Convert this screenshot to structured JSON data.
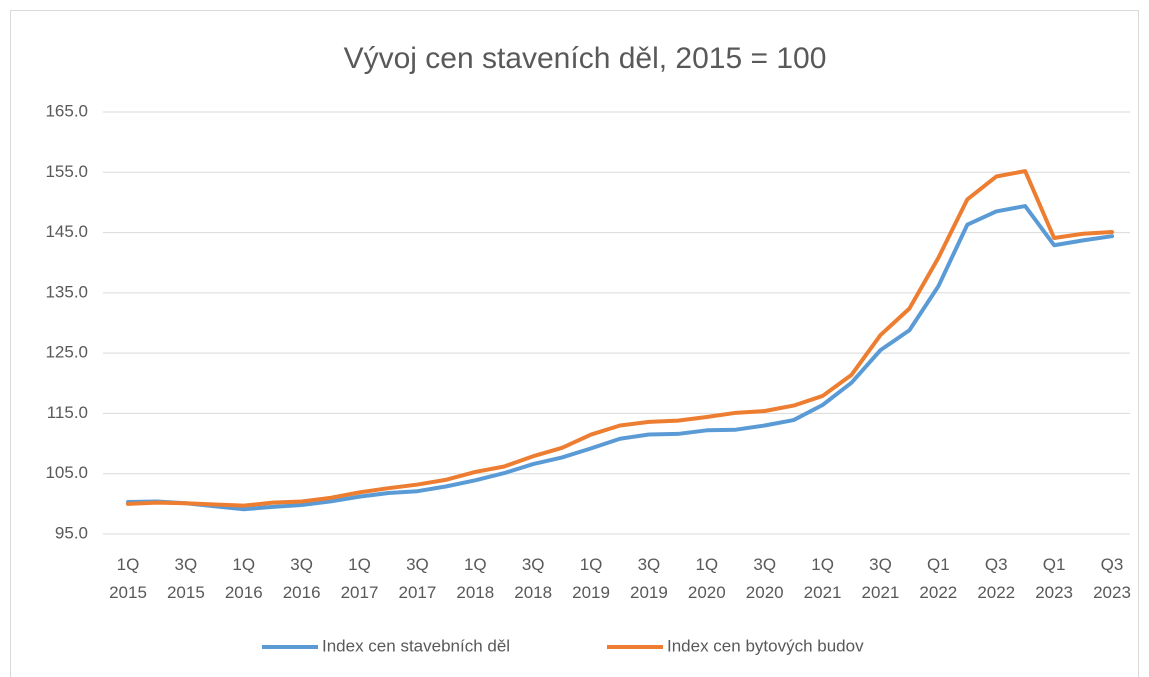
{
  "chart_data": {
    "type": "line",
    "title": "Vývoj cen staveních děl, 2015 = 100",
    "categories": [
      "1Q\n2015",
      null,
      "3Q\n2015",
      null,
      "1Q\n2016",
      null,
      "3Q\n2016",
      null,
      "1Q\n2017",
      null,
      "3Q\n2017",
      null,
      "1Q\n2018",
      null,
      "3Q\n2018",
      null,
      "1Q\n2019",
      null,
      "3Q\n2019",
      null,
      "1Q\n2020",
      null,
      "3Q\n2020",
      null,
      "1Q\n2021",
      null,
      "3Q\n2021",
      null,
      "Q1\n2022",
      null,
      "Q3\n2022",
      null,
      "Q1\n2023",
      null,
      "Q3\n2023"
    ],
    "series": [
      {
        "name": "Index cen stavebních děl",
        "color": "#5b9bd5",
        "values": [
          100.3,
          100.4,
          100.1,
          99.6,
          99.1,
          99.5,
          99.8,
          100.4,
          101.2,
          101.8,
          102.1,
          102.9,
          103.9,
          105.1,
          106.6,
          107.7,
          109.2,
          110.8,
          111.5,
          111.6,
          112.2,
          112.3,
          113.0,
          113.9,
          116.4,
          120.1,
          125.5,
          128.8,
          136.1,
          146.3,
          148.5,
          149.4,
          142.9,
          143.7,
          144.4
        ]
      },
      {
        "name": "Index cen bytových budov",
        "color": "#ed7d31",
        "values": [
          100.0,
          100.2,
          100.1,
          99.9,
          99.7,
          100.2,
          100.4,
          101.0,
          101.9,
          102.6,
          103.2,
          104.0,
          105.3,
          106.2,
          107.9,
          109.3,
          111.5,
          113.0,
          113.6,
          113.8,
          114.4,
          115.1,
          115.4,
          116.3,
          117.9,
          121.4,
          128.0,
          132.4,
          140.8,
          150.5,
          154.3,
          155.2,
          144.1,
          144.8,
          145.1
        ]
      }
    ],
    "ylim": [
      95,
      165
    ],
    "yticks": [
      {
        "value": 95,
        "label": "95.0"
      },
      {
        "value": 105,
        "label": "105.0"
      },
      {
        "value": 115,
        "label": "115.0"
      },
      {
        "value": 125,
        "label": "125.0"
      },
      {
        "value": 135,
        "label": "135.0"
      },
      {
        "value": 145,
        "label": "145.0"
      },
      {
        "value": 155,
        "label": "155.0"
      },
      {
        "value": 165,
        "label": "165.0"
      }
    ],
    "grid": true,
    "legend": "bottom"
  }
}
